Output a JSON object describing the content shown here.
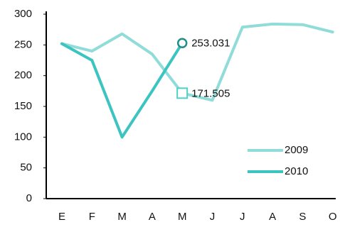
{
  "chart_data": {
    "type": "line",
    "categories": [
      "E",
      "F",
      "M",
      "A",
      "M",
      "J",
      "J",
      "A",
      "S",
      "O"
    ],
    "series": [
      {
        "name": "2009",
        "color": "#8fdcd8",
        "marker": "square",
        "marker_color": "#4fcfca",
        "labeled_points": [
          4
        ],
        "values": [
          252,
          240,
          268,
          235,
          171.505,
          160,
          279,
          284,
          283,
          271
        ]
      },
      {
        "name": "2010",
        "color": "#3cc4c0",
        "marker": "circle",
        "marker_color": "#1f8f86",
        "labeled_points": [
          4
        ],
        "values": [
          252,
          225,
          100,
          175,
          253.031,
          null,
          null,
          null,
          null,
          null
        ]
      }
    ],
    "ylim": [
      0,
      300
    ],
    "yticks": [
      0,
      50,
      100,
      150,
      200,
      250,
      300
    ],
    "grid": false,
    "legend": "lower right"
  }
}
